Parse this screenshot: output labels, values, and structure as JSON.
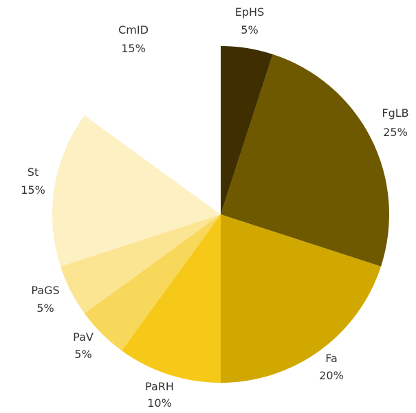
{
  "chart_data": {
    "type": "pie",
    "title": "",
    "start": "12 o'clock",
    "direction": "clockwise",
    "slices": [
      {
        "label": "EpHS",
        "value": 5,
        "percent_label": "5%",
        "color": "#3f2f00"
      },
      {
        "label": "FgLB",
        "value": 25,
        "percent_label": "25%",
        "color": "#6e5800"
      },
      {
        "label": "Fa",
        "value": 20,
        "percent_label": "20%",
        "color": "#d1a800"
      },
      {
        "label": "PaRH",
        "value": 10,
        "percent_label": "10%",
        "color": "#f6c918"
      },
      {
        "label": "PaV",
        "value": 5,
        "percent_label": "5%",
        "color": "#f8d85a"
      },
      {
        "label": "PaGS",
        "value": 5,
        "percent_label": "5%",
        "color": "#fbe593"
      },
      {
        "label": "St",
        "value": 15,
        "percent_label": "15%",
        "color": "#fdf0c3"
      },
      {
        "label": "CmID",
        "value": 15,
        "percent_label": "15%",
        "color": "#ffffff"
      }
    ]
  }
}
